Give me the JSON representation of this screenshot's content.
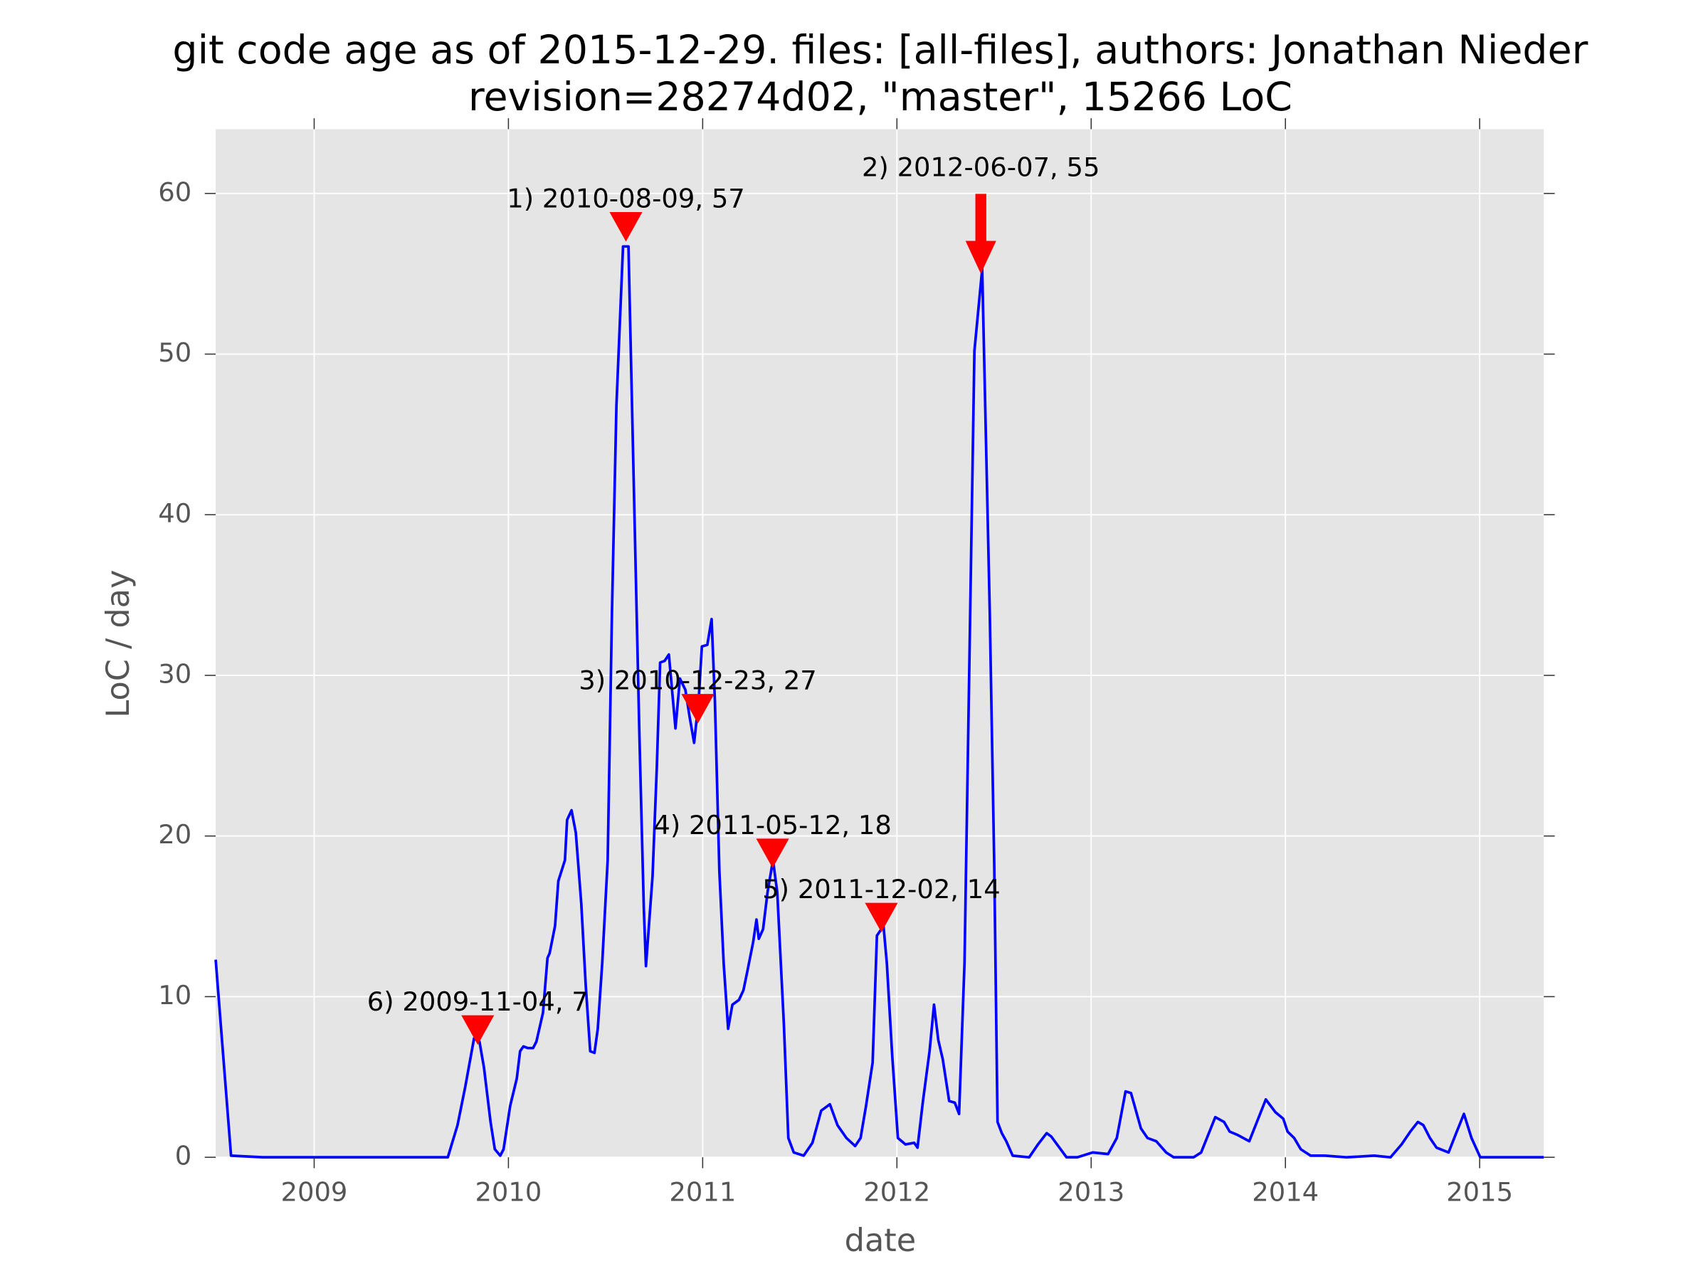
{
  "chart_data": {
    "type": "line",
    "title": "git code age as of 2015-12-29. files: [all-files], authors: Jonathan Nieder",
    "subtitle": "revision=28274d02, \"master\", 15266 LoC",
    "x_label": "date",
    "y_label": "LoC / day",
    "xlim": [
      2008.493,
      2015.33
    ],
    "ylim": [
      0,
      64
    ],
    "xticks": [
      2009,
      2010,
      2011,
      2012,
      2013,
      2014,
      2015
    ],
    "yticks": [
      0,
      10,
      20,
      30,
      40,
      50,
      60
    ],
    "grid": true,
    "background": "#e5e5e5",
    "series": [
      {
        "color": "#0000ff",
        "x": [
          2008.493,
          2008.572,
          2008.735,
          2009.688,
          2009.738,
          2009.778,
          2009.823,
          2009.851,
          2009.874,
          2009.908,
          2009.93,
          2009.958,
          2009.975,
          2010.009,
          2010.043,
          2010.06,
          2010.077,
          2010.099,
          2010.127,
          2010.144,
          2010.178,
          2010.201,
          2010.212,
          2010.24,
          2010.257,
          2010.291,
          2010.302,
          2010.325,
          2010.347,
          2010.375,
          2010.398,
          2010.421,
          2010.443,
          2010.46,
          2010.483,
          2010.511,
          2010.533,
          2010.556,
          2010.59,
          2010.618,
          2010.64,
          2010.674,
          2010.697,
          2010.708,
          2010.742,
          2010.764,
          2010.781,
          2010.804,
          2010.826,
          2010.86,
          2010.883,
          2010.911,
          2010.933,
          2010.956,
          2010.979,
          2010.996,
          2011.024,
          2011.046,
          2011.063,
          2011.086,
          2011.108,
          2011.131,
          2011.153,
          2011.187,
          2011.21,
          2011.232,
          2011.26,
          2011.277,
          2011.289,
          2011.311,
          2011.334,
          2011.362,
          2011.384,
          2011.418,
          2011.441,
          2011.469,
          2011.52,
          2011.565,
          2011.61,
          2011.655,
          2011.694,
          2011.74,
          2011.785,
          2011.813,
          2011.841,
          2011.875,
          2011.897,
          2011.931,
          2011.948,
          2011.976,
          2012.005,
          2012.044,
          2012.089,
          2012.106,
          2012.134,
          2012.168,
          2012.191,
          2012.213,
          2012.236,
          2012.269,
          2012.298,
          2012.32,
          2012.348,
          2012.399,
          2012.439,
          2012.478,
          2012.501,
          2012.518,
          2012.54,
          2012.563,
          2012.596,
          2012.681,
          2012.726,
          2012.771,
          2012.794,
          2012.873,
          2012.929,
          2013.008,
          2013.087,
          2013.132,
          2013.177,
          2013.205,
          2013.256,
          2013.29,
          2013.335,
          2013.386,
          2013.425,
          2013.527,
          2013.566,
          2013.639,
          2013.684,
          2013.713,
          2013.752,
          2013.814,
          2013.899,
          2013.949,
          2013.989,
          2014.011,
          2014.045,
          2014.079,
          2014.13,
          2014.203,
          2014.316,
          2014.457,
          2014.541,
          2014.598,
          2014.643,
          2014.682,
          2014.71,
          2014.744,
          2014.778,
          2014.84,
          2014.879,
          2014.919,
          2014.958,
          2015.003,
          2015.33
        ],
        "values": [
          12.3,
          0.1,
          0,
          0,
          2.0,
          4.4,
          7.4,
          7.2,
          5.6,
          2.2,
          0.5,
          0.1,
          0.5,
          3.2,
          4.9,
          6.6,
          6.9,
          6.8,
          6.8,
          7.2,
          9.0,
          12.4,
          12.7,
          14.4,
          17.2,
          18.5,
          21.0,
          21.6,
          20.2,
          15.8,
          10.7,
          6.6,
          6.5,
          8.0,
          12.1,
          18.5,
          33.9,
          46.8,
          56.7,
          56.7,
          44.8,
          26.4,
          15.5,
          11.9,
          17.5,
          24.3,
          30.8,
          30.9,
          31.3,
          26.7,
          29.8,
          29.1,
          27.4,
          25.8,
          28.4,
          31.8,
          31.9,
          33.5,
          28.4,
          17.8,
          12.1,
          8.0,
          9.5,
          9.8,
          10.4,
          11.7,
          13.4,
          14.8,
          13.6,
          14.2,
          16.5,
          18.5,
          16.5,
          8.3,
          1.2,
          0.3,
          0.1,
          0.9,
          2.9,
          3.3,
          2.0,
          1.2,
          0.7,
          1.2,
          3.2,
          5.9,
          13.8,
          14.4,
          12.1,
          6.3,
          1.2,
          0.8,
          0.9,
          0.6,
          3.5,
          6.6,
          9.5,
          7.3,
          6.1,
          3.5,
          3.4,
          2.7,
          12.1,
          50.2,
          55.3,
          33.9,
          18.2,
          2.2,
          1.5,
          1.0,
          0.1,
          0,
          0.8,
          1.5,
          1.3,
          0,
          0,
          0.3,
          0.2,
          1.2,
          4.1,
          4.0,
          1.8,
          1.2,
          1.0,
          0.3,
          0,
          0,
          0.3,
          2.5,
          2.2,
          1.6,
          1.4,
          1.0,
          3.6,
          2.8,
          2.4,
          1.6,
          1.2,
          0.5,
          0.1,
          0.1,
          0,
          0.1,
          0,
          0.8,
          1.6,
          2.2,
          2.0,
          1.2,
          0.6,
          0.3,
          1.5,
          2.7,
          1.2,
          0,
          0
        ]
      }
    ],
    "annotation_color": "#ff0000",
    "annotations": [
      {
        "text": "1) 2010-08-09, 57",
        "x": 2010.605,
        "y": 57,
        "style": "marker"
      },
      {
        "text": "2) 2012-06-07, 55",
        "x": 2012.432,
        "y": 55,
        "style": "arrow"
      },
      {
        "text": "3) 2010-12-23, 27",
        "x": 2010.975,
        "y": 27,
        "style": "marker"
      },
      {
        "text": "4) 2011-05-12, 18",
        "x": 2011.36,
        "y": 18,
        "style": "marker"
      },
      {
        "text": "5) 2011-12-02, 14",
        "x": 2011.92,
        "y": 14,
        "style": "marker"
      },
      {
        "text": "6) 2009-11-04, 7",
        "x": 2009.842,
        "y": 7,
        "style": "marker"
      }
    ]
  }
}
